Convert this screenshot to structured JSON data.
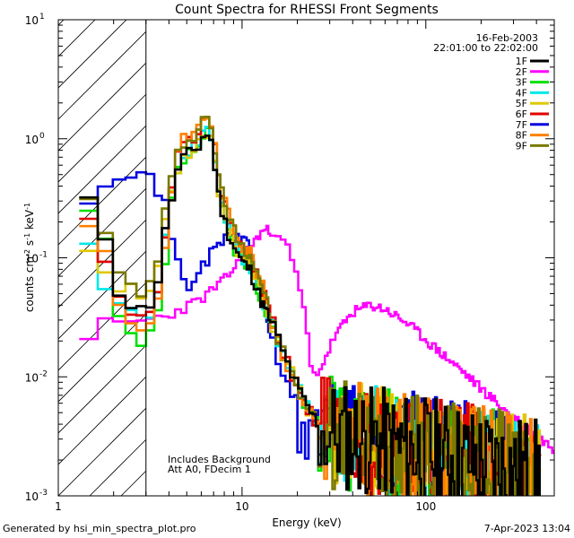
{
  "chart_data": {
    "type": "line",
    "title": "Count Spectra for RHESSI Front Segments",
    "xlabel": "Energy (keV)",
    "ylabel": "counts cm^-2 s^-1 keV^-1",
    "x_scale": "log",
    "y_scale": "log",
    "xlim": [
      1,
      500
    ],
    "ylim": [
      0.001,
      10
    ],
    "x_ticks": [
      {
        "value": 1,
        "label": "1"
      },
      {
        "value": 10,
        "label": "10"
      },
      {
        "value": 100,
        "label": "100"
      }
    ],
    "y_ticks": [
      {
        "value": 10,
        "base": "10",
        "exp": "1"
      },
      {
        "value": 1,
        "base": "10",
        "exp": "0"
      },
      {
        "value": 0.1,
        "base": "10",
        "exp": "-1"
      },
      {
        "value": 0.01,
        "base": "10",
        "exp": "-2"
      },
      {
        "value": 0.001,
        "base": "10",
        "exp": "-3"
      }
    ],
    "hatched_region": [
      1,
      3
    ],
    "legend": {
      "date": "16-Feb-2003",
      "time_range": "22:01:00 to 22:02:00",
      "placement": "top-right"
    },
    "annotation": [
      "Includes Background",
      "Att A0, FDecim 1"
    ],
    "series": [
      {
        "name": "1F",
        "color": "#000000",
        "shape": "thermal",
        "peak": 1.15,
        "low": 0.3,
        "shift": 0.0,
        "dip": 0.035,
        "seed": 11
      },
      {
        "name": "2F",
        "color": "#ff00ff",
        "shape": "magenta",
        "seed": 23
      },
      {
        "name": "3F",
        "color": "#00e000",
        "shape": "thermal",
        "peak": 1.15,
        "low": 0.25,
        "shift": 0.04,
        "dip": 0.018,
        "seed": 37
      },
      {
        "name": "4F",
        "color": "#00e8e8",
        "shape": "thermal",
        "peak": 1.25,
        "low": 0.12,
        "shift": 0.0,
        "dip": 0.03,
        "seed": 41
      },
      {
        "name": "5F",
        "color": "#e0c800",
        "shape": "thermal",
        "peak": 1.25,
        "low": 0.14,
        "shift": 0.0,
        "dip": 0.045,
        "seed": 53
      },
      {
        "name": "6F",
        "color": "#e00000",
        "shape": "thermal",
        "peak": 1.55,
        "low": 0.21,
        "shift": 0.0,
        "dip": 0.028,
        "seed": 61
      },
      {
        "name": "7F",
        "color": "#0000e0",
        "shape": "blue",
        "seed": 71
      },
      {
        "name": "8F",
        "color": "#ff8000",
        "shape": "thermal",
        "peak": 1.65,
        "low": 0.22,
        "shift": 0.0,
        "dip": 0.025,
        "seed": 83
      },
      {
        "name": "9F",
        "color": "#7a7a00",
        "shape": "thermal",
        "peak": 1.6,
        "low": 0.3,
        "shift": 0.0,
        "dip": 0.05,
        "seed": 97
      }
    ]
  },
  "footer": {
    "generator": "Generated by hsi_min_spectra_plot.pro",
    "timestamp": "7-Apr-2023 13:04"
  }
}
